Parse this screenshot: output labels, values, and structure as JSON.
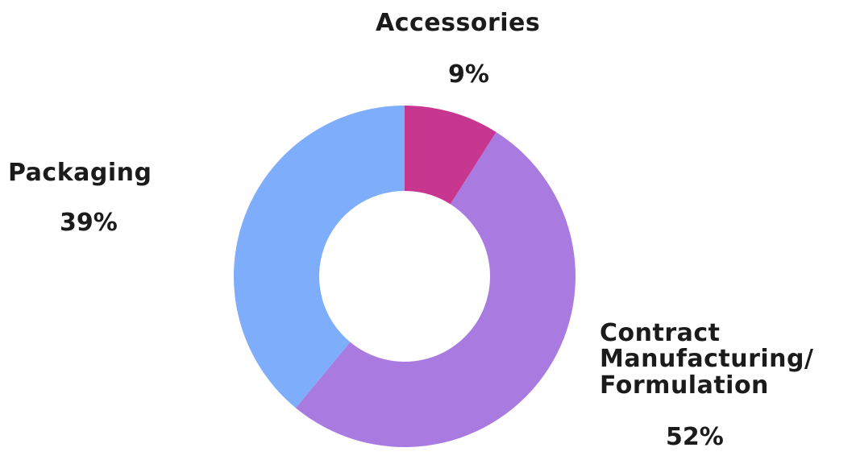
{
  "chart_data": {
    "type": "pie",
    "donut": true,
    "start_angle_deg": 0,
    "direction": "clockwise",
    "slices": [
      {
        "label": "Accessories",
        "value": 9,
        "display_value": "9%",
        "color": "#c8378f"
      },
      {
        "label": "Contract\nManufacturing/\nFormulation",
        "value": 52,
        "display_value": "52%",
        "color": "#a97be0"
      },
      {
        "label": "Packaging",
        "value": 39,
        "display_value": "39%",
        "color": "#7eadfc"
      }
    ]
  }
}
